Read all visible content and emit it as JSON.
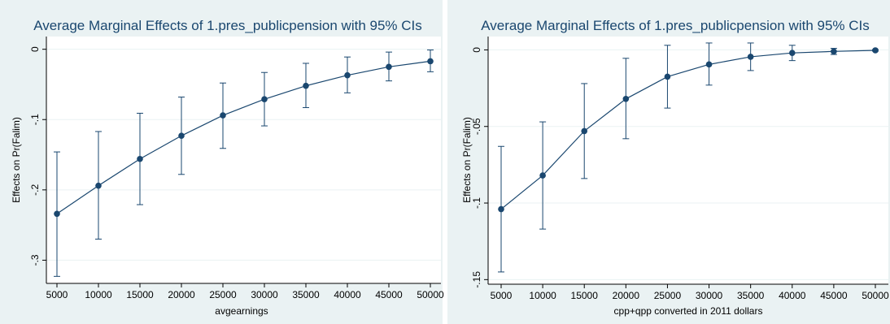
{
  "colors": {
    "series": "#1a476f",
    "panel_background": "#eaf2f3",
    "plot_background": "#ffffff"
  },
  "chart_data": [
    {
      "type": "line",
      "title": "Average Marginal Effects of 1.pres_publicpension with 95% CIs",
      "xlabel": "avgearnings",
      "ylabel": "Effects on Pr(Falim)",
      "x": [
        5000,
        10000,
        15000,
        20000,
        25000,
        30000,
        35000,
        40000,
        45000,
        50000
      ],
      "x_tick_labels": [
        "5000",
        "10000",
        "15000",
        "20000",
        "25000",
        "30000",
        "35000",
        "40000",
        "45000",
        "50000"
      ],
      "y": [
        -0.234,
        -0.194,
        -0.156,
        -0.123,
        -0.094,
        -0.071,
        -0.052,
        -0.037,
        -0.025,
        -0.017
      ],
      "ci_lower": [
        -0.323,
        -0.27,
        -0.221,
        -0.178,
        -0.141,
        -0.109,
        -0.083,
        -0.062,
        -0.045,
        -0.032
      ],
      "ci_upper": [
        -0.146,
        -0.117,
        -0.091,
        -0.068,
        -0.048,
        -0.033,
        -0.02,
        -0.011,
        -0.004,
        -0.001
      ],
      "y_ticks": [
        0,
        -0.1,
        -0.2,
        -0.3
      ],
      "y_tick_labels": [
        "0",
        "-.1",
        "-.2",
        "-.3"
      ],
      "xlim": [
        5000,
        50000
      ],
      "ylim": [
        -0.333,
        0.01
      ],
      "grid": true
    },
    {
      "type": "line",
      "title": "Average Marginal Effects of 1.pres_publicpension with 95% CIs",
      "xlabel": "cpp+qpp converted in 2011 dollars",
      "ylabel": "Effects on Pr(Falim)",
      "x": [
        5000,
        10000,
        15000,
        20000,
        25000,
        30000,
        35000,
        40000,
        45000,
        50000
      ],
      "x_tick_labels": [
        "5000",
        "10000",
        "15000",
        "20000",
        "25000",
        "30000",
        "35000",
        "40000",
        "45000",
        "50000"
      ],
      "y": [
        -0.104,
        -0.082,
        -0.053,
        -0.032,
        -0.0175,
        -0.0095,
        -0.0045,
        -0.002,
        -0.001,
        -0.0003
      ],
      "ci_lower": [
        -0.145,
        -0.117,
        -0.084,
        -0.058,
        -0.038,
        -0.023,
        -0.0135,
        -0.007,
        -0.003,
        -0.0008
      ],
      "ci_upper": [
        -0.063,
        -0.047,
        -0.022,
        -0.0055,
        0.003,
        0.0045,
        0.0045,
        0.003,
        0.001,
        0.0002
      ],
      "y_ticks": [
        0,
        -0.05,
        -0.1,
        -0.15
      ],
      "y_tick_labels": [
        "0",
        "-.05",
        "-.1",
        "-.15"
      ],
      "xlim": [
        5000,
        50000
      ],
      "ylim": [
        -0.153,
        0.005
      ],
      "grid": true
    }
  ]
}
